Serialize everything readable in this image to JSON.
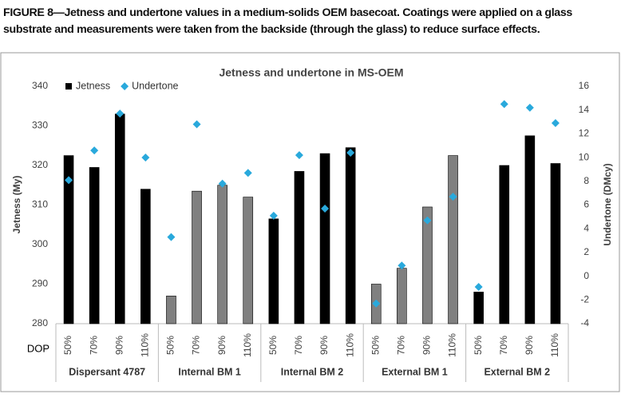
{
  "caption": "FIGURE 8—Jetness and undertone values in a medium-solids OEM basecoat. Coatings were applied on a glass substrate and measurements were taken from the backside (through the glass) to reduce surface effects.",
  "chart_data": {
    "type": "bar",
    "title": "Jetness and undertone in MS-OEM",
    "x_label": "DOP",
    "y_label": "Jetness (My)",
    "y2_label": "Undertone (DMcy)",
    "categories": [
      "50%",
      "70%",
      "90%",
      "110%",
      "50%",
      "70%",
      "90%",
      "110%",
      "50%",
      "70%",
      "90%",
      "110%",
      "50%",
      "70%",
      "90%",
      "110%",
      "50%",
      "70%",
      "90%",
      "110%"
    ],
    "groups": [
      "Dispersant 4787",
      "Internal BM 1",
      "Internal BM 2",
      "External BM 1",
      "External BM 2"
    ],
    "ylim": [
      280,
      340
    ],
    "yticks": [
      280,
      290,
      300,
      310,
      320,
      330,
      340
    ],
    "y2lim": [
      -4,
      16
    ],
    "y2ticks": [
      -4,
      -2,
      0,
      2,
      4,
      6,
      8,
      10,
      12,
      14,
      16
    ],
    "grid": false,
    "legend": "top-left",
    "series": [
      {
        "name": "Jetness",
        "type": "bar",
        "color": "#000000",
        "colors": [
          "#000000",
          "#000000",
          "#000000",
          "#000000",
          "#808080",
          "#808080",
          "#808080",
          "#808080",
          "#000000",
          "#000000",
          "#000000",
          "#000000",
          "#808080",
          "#808080",
          "#808080",
          "#808080",
          "#000000",
          "#000000",
          "#000000",
          "#000000"
        ],
        "values": [
          322.5,
          319.5,
          333,
          314,
          287,
          313.5,
          315,
          312,
          306.5,
          318.5,
          323,
          324.5,
          290,
          294,
          309.5,
          322.5,
          288,
          320,
          327.5,
          320.5
        ]
      },
      {
        "name": "Undertone",
        "type": "scatter",
        "axis": "y2",
        "color": "#29a9dc",
        "marker": "diamond",
        "values": [
          8.1,
          10.6,
          13.7,
          10.0,
          3.3,
          12.8,
          7.8,
          8.7,
          5.1,
          10.2,
          5.7,
          10.4,
          -2.3,
          0.9,
          4.7,
          6.7,
          -0.9,
          14.5,
          14.2,
          12.9
        ]
      }
    ]
  }
}
